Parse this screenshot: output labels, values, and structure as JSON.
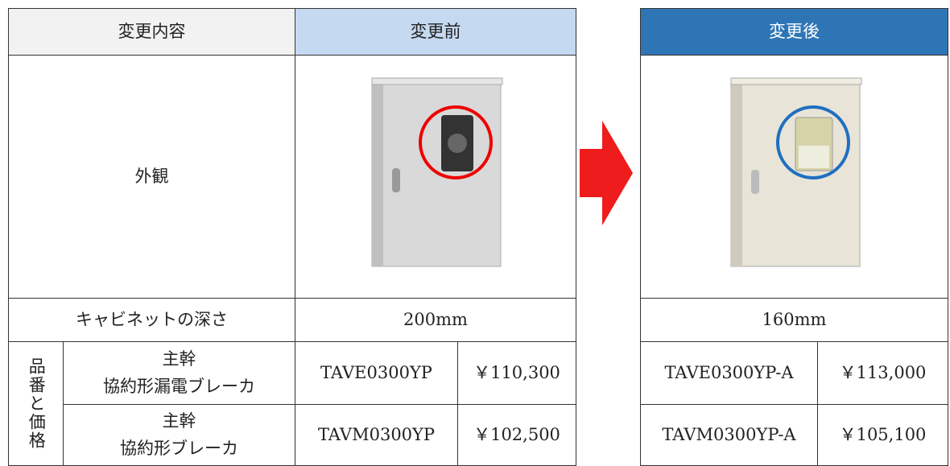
{
  "before_table": {
    "headers": [
      "変更内容",
      "変更前"
    ],
    "appearance_label": "外観",
    "depth_label": "キャビネットの深さ",
    "depth": "200mm",
    "group_label": "品番と価格",
    "items": [
      {
        "name": [
          "主幹",
          "協約形漏電ブレーカ"
        ],
        "part": "TAVE0300YP",
        "price": "￥110,300"
      },
      {
        "name": [
          "主幹",
          "協約形ブレーカ"
        ],
        "part": "TAVM0300YP",
        "price": "￥102,500"
      }
    ]
  },
  "after_table": {
    "header": "変更後",
    "depth": "160mm",
    "items": [
      {
        "part": "TAVE0300YP-A",
        "price": "￥113,000"
      },
      {
        "part": "TAVM0300YP-A",
        "price": "￥105,100"
      }
    ]
  }
}
